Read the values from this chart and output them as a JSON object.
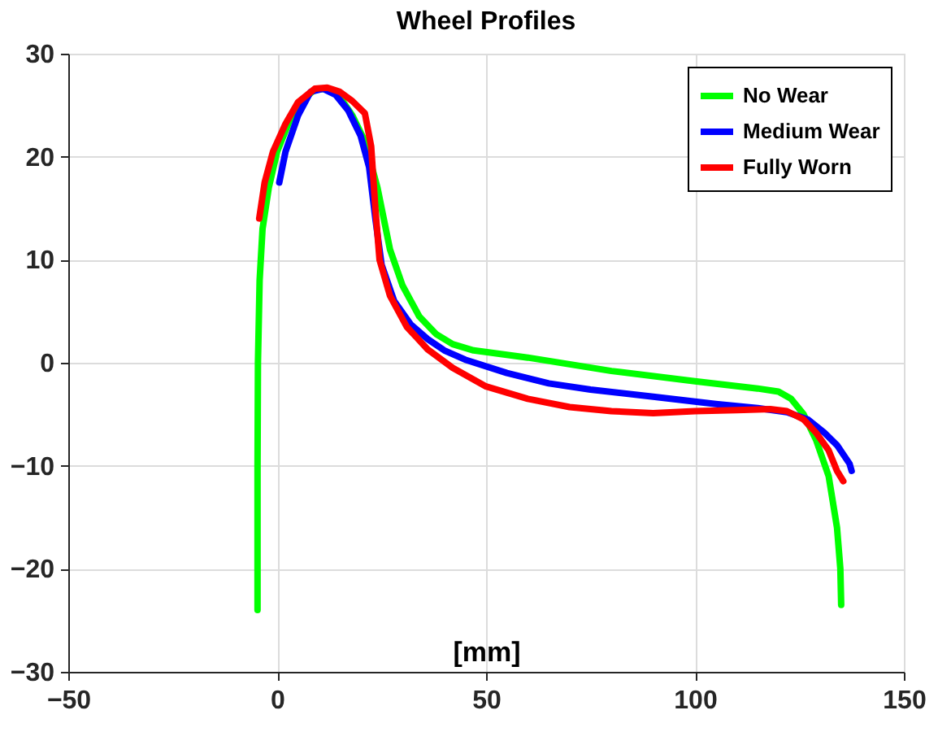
{
  "chart_data": {
    "type": "line",
    "title": "Wheel Profiles",
    "xlabel": "[mm]",
    "xlim": [
      -50,
      150
    ],
    "xticks": [
      -50,
      0,
      50,
      100,
      150
    ],
    "ylim": [
      -30,
      30
    ],
    "yticks": [
      -30,
      -20,
      -10,
      0,
      10,
      20,
      30
    ],
    "grid": true,
    "legend": "top right",
    "line_style": "solid",
    "marker": "none",
    "series": [
      {
        "name": "No Wear",
        "color": "#00ff00",
        "x": [
          -4.7,
          -4.7,
          -4.6,
          -4.2,
          -3.5,
          -2,
          0,
          3,
          6,
          9,
          12,
          15,
          18,
          21,
          24,
          27,
          30,
          34,
          38,
          42,
          47,
          60,
          80,
          100,
          115,
          120,
          123,
          126,
          129,
          132,
          134,
          134.8,
          135
        ],
        "values": [
          -24,
          -10,
          0,
          8,
          13,
          17,
          20.5,
          23.5,
          25.5,
          26.5,
          26.6,
          25.8,
          24,
          21.5,
          17,
          11,
          7.5,
          4.5,
          2.8,
          1.8,
          1.2,
          0.5,
          -0.8,
          -1.8,
          -2.5,
          -2.8,
          -3.5,
          -5,
          -7.5,
          -11,
          -16,
          -20,
          -23.5
        ]
      },
      {
        "name": "Medium Wear",
        "color": "#0000ff",
        "x": [
          0.5,
          2,
          5,
          8,
          11,
          14,
          17,
          20,
          22,
          23.5,
          25,
          28,
          32,
          36,
          40,
          45,
          55,
          65,
          75,
          90,
          105,
          115,
          122,
          127,
          131,
          134,
          137,
          137.5
        ],
        "values": [
          17.5,
          20.5,
          24,
          26.3,
          26.6,
          26,
          24.5,
          22,
          19,
          14,
          9.5,
          6,
          3.7,
          2.3,
          1.2,
          0.3,
          -1,
          -2,
          -2.6,
          -3.3,
          -4,
          -4.4,
          -4.8,
          -5.5,
          -6.8,
          -8,
          -9.8,
          -10.5
        ]
      },
      {
        "name": "Fully Worn",
        "color": "#ff0000",
        "x": [
          -4.3,
          -3,
          -1,
          2,
          5,
          9,
          12,
          15,
          18,
          21,
          22.5,
          23.5,
          24.5,
          27,
          31,
          36,
          42,
          50,
          60,
          70,
          80,
          90,
          100,
          110,
          118,
          122,
          126,
          129,
          132,
          134,
          135.5
        ],
        "values": [
          14,
          17.5,
          20.5,
          23.2,
          25.3,
          26.6,
          26.7,
          26.3,
          25.4,
          24.2,
          21,
          15,
          10,
          6.5,
          3.5,
          1.3,
          -0.5,
          -2.3,
          -3.5,
          -4.3,
          -4.7,
          -4.9,
          -4.7,
          -4.6,
          -4.5,
          -4.7,
          -5.5,
          -6.8,
          -8.5,
          -10.5,
          -11.5
        ]
      }
    ]
  }
}
